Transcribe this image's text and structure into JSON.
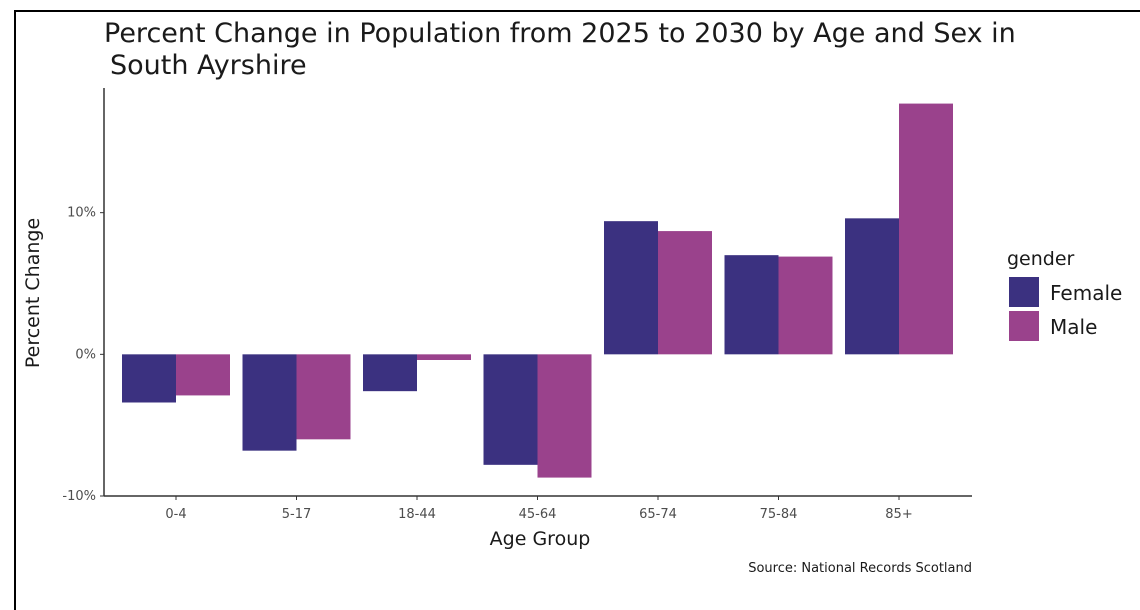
{
  "chart_data": {
    "type": "bar",
    "title_line1": "Percent Change in Population from 2025 to 2030 by Age and Sex in",
    "title_line2": "South Ayrshire",
    "xlabel": "Age Group",
    "ylabel": "Percent Change",
    "categories": [
      "0-4",
      "5-17",
      "18-44",
      "45-64",
      "65-74",
      "75-84",
      "85+"
    ],
    "series": [
      {
        "name": "Female",
        "color": "#3b3180",
        "values": [
          -3.4,
          -6.8,
          -2.6,
          -7.8,
          9.4,
          7.0,
          9.6
        ]
      },
      {
        "name": "Male",
        "color": "#9a428c",
        "values": [
          -2.9,
          -6.0,
          -0.4,
          -8.7,
          8.7,
          6.9,
          17.7
        ]
      }
    ],
    "yticks": [
      {
        "value": -10,
        "label": "-10%"
      },
      {
        "value": 0,
        "label": "0%"
      },
      {
        "value": 10,
        "label": "10%"
      }
    ],
    "ylim": [
      -10,
      18.8
    ],
    "legend_title": "gender",
    "legend_position": "right",
    "grid": false,
    "source": "Source: National Records Scotland"
  }
}
